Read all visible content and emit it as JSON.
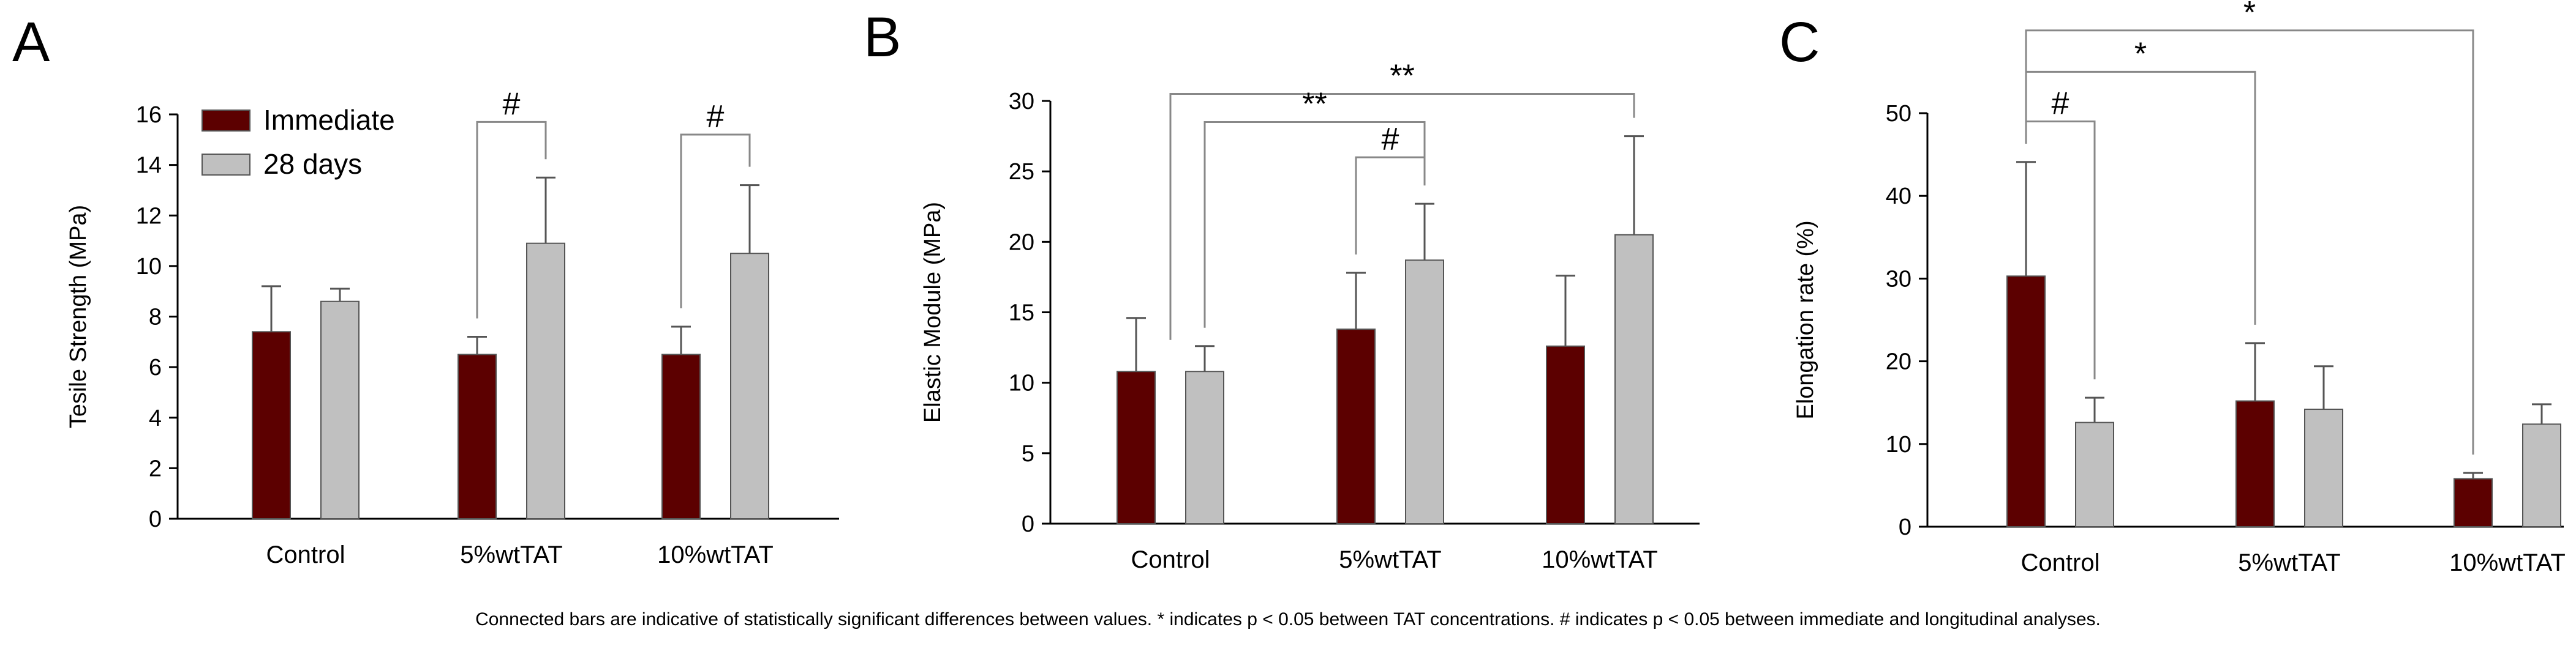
{
  "caption": "Connected bars are indicative of statistically significant differences between values. * indicates p < 0.05 between TAT concentrations. # indicates p < 0.05 between immediate and longitudinal analyses.",
  "legend": [
    {
      "label": "Immediate",
      "color": "#5c0000"
    },
    {
      "label": "28 days",
      "color": "#c0c0c0"
    }
  ],
  "chart_data": [
    {
      "panel": "A",
      "type": "bar",
      "categories": [
        "Control",
        "5%wtTAT",
        "10%wtTAT"
      ],
      "ylabel": "Tesile Strength (MPa)",
      "ylim": [
        0,
        16
      ],
      "yticks": [
        0,
        2,
        4,
        6,
        8,
        10,
        12,
        14,
        16
      ],
      "series": [
        {
          "name": "Immediate",
          "values": [
            7.4,
            6.5,
            6.5
          ],
          "errors": [
            1.8,
            0.7,
            1.1
          ]
        },
        {
          "name": "28 days",
          "values": [
            8.6,
            10.9,
            10.5
          ],
          "errors": [
            0.5,
            2.6,
            2.7
          ]
        }
      ],
      "annotations": [
        {
          "label": "#",
          "from": [
            1,
            0
          ],
          "to": [
            1,
            1
          ],
          "level": 15.7
        },
        {
          "label": "#",
          "from": [
            2,
            0
          ],
          "to": [
            2,
            1
          ],
          "level": 15.2
        }
      ]
    },
    {
      "panel": "B",
      "type": "bar",
      "categories": [
        "Control",
        "5%wtTAT",
        "10%wtTAT"
      ],
      "ylabel": "Elastic Module (MPa)",
      "ylim": [
        0,
        30
      ],
      "yticks": [
        0,
        5,
        10,
        15,
        20,
        25,
        30
      ],
      "series": [
        {
          "name": "Immediate",
          "values": [
            10.8,
            13.8,
            12.6
          ],
          "errors": [
            3.8,
            4.0,
            5.0
          ]
        },
        {
          "name": "28 days",
          "values": [
            10.8,
            18.7,
            20.5
          ],
          "errors": [
            1.8,
            4.0,
            7.0
          ]
        }
      ],
      "annotations": [
        {
          "label": "**",
          "from": [
            0,
            0.5
          ],
          "to": [
            2,
            1
          ],
          "level": 30.5
        },
        {
          "label": "**",
          "from": [
            0,
            1
          ],
          "to": [
            1,
            1
          ],
          "level": 28.5
        },
        {
          "label": "#",
          "from": [
            1,
            0
          ],
          "to": [
            1,
            1
          ],
          "level": 26
        }
      ]
    },
    {
      "panel": "C",
      "type": "bar",
      "categories": [
        "Control",
        "5%wtTAT",
        "10%wtTAT"
      ],
      "ylabel": "Elongation rate (%)",
      "ylim": [
        0,
        50
      ],
      "yticks": [
        0,
        10,
        20,
        30,
        40,
        50
      ],
      "series": [
        {
          "name": "Immediate",
          "values": [
            30.3,
            15.2,
            5.8
          ],
          "errors": [
            13.8,
            7.0,
            0.7
          ]
        },
        {
          "name": "28 days",
          "values": [
            12.6,
            14.2,
            12.4
          ],
          "errors": [
            3.0,
            5.2,
            2.4
          ]
        }
      ],
      "annotations": [
        {
          "label": "*",
          "from": [
            0,
            0
          ],
          "to": [
            2,
            0
          ],
          "level": 60
        },
        {
          "label": "*",
          "from": [
            0,
            0
          ],
          "to": [
            1,
            0
          ],
          "level": 55
        },
        {
          "label": "#",
          "from": [
            0,
            0
          ],
          "to": [
            0,
            1
          ],
          "level": 49
        }
      ]
    }
  ]
}
